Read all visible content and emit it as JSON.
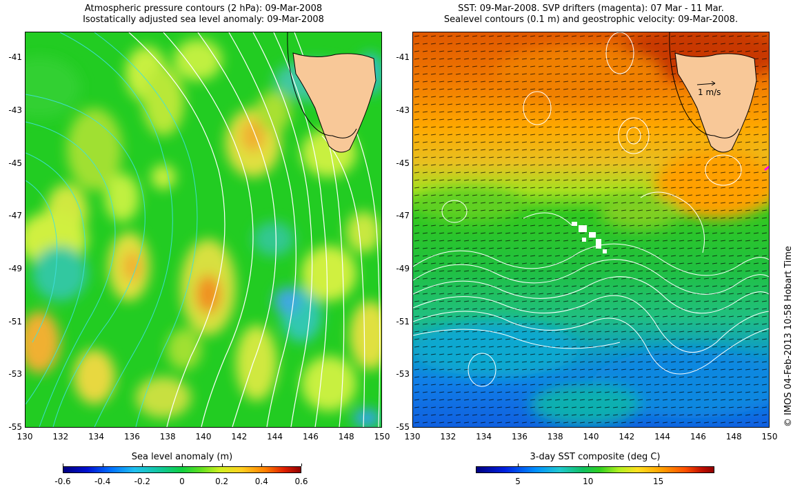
{
  "left_panel": {
    "title_line1": "Atmospheric pressure contours (2 hPa): 09-Mar-2008",
    "title_line2": "Isostatically adjusted sea level anomaly: 09-Mar-2008",
    "colorbar_label": "Sea level anomaly (m)",
    "colorbar_ticks": [
      "-0.6",
      "-0.4",
      "-0.2",
      "0",
      "0.2",
      "0.4",
      "0.6"
    ],
    "colorbar_values": [
      -0.6,
      -0.4,
      -0.2,
      0,
      0.2,
      0.4,
      0.6
    ],
    "colorbar_range": [
      -0.6,
      0.6
    ]
  },
  "right_panel": {
    "title_line1": "SST: 09-Mar-2008. SVP drifters (magenta): 07 Mar - 11 Mar.",
    "title_line2": "Sealevel contours (0.1 m) and geostrophic velocity: 09-Mar-2008.",
    "colorbar_label": "3-day SST composite (deg C)",
    "colorbar_ticks": [
      "5",
      "10",
      "15"
    ],
    "colorbar_values": [
      5,
      10,
      15
    ],
    "colorbar_range": [
      2,
      19
    ],
    "velocity_scale_label": "1 m/s"
  },
  "axes": {
    "lon_ticks": [
      "130",
      "132",
      "134",
      "136",
      "138",
      "140",
      "142",
      "144",
      "146",
      "148",
      "150"
    ],
    "lat_ticks": [
      "-41",
      "-43",
      "-45",
      "-47",
      "-49",
      "-51",
      "-53",
      "-55"
    ],
    "lon_range": [
      130,
      150
    ],
    "lat_range": [
      -55,
      -40
    ]
  },
  "credit": "© IMOS 04-Feb-2013 10:58 Hobart Time",
  "colors": {
    "land": "#f8c898",
    "ocean_base_left": "#22cc22",
    "drifters": "#ff00ff",
    "contour_left_pressure": "#ffffff",
    "contour_left_cyan": "#40e0e0"
  }
}
